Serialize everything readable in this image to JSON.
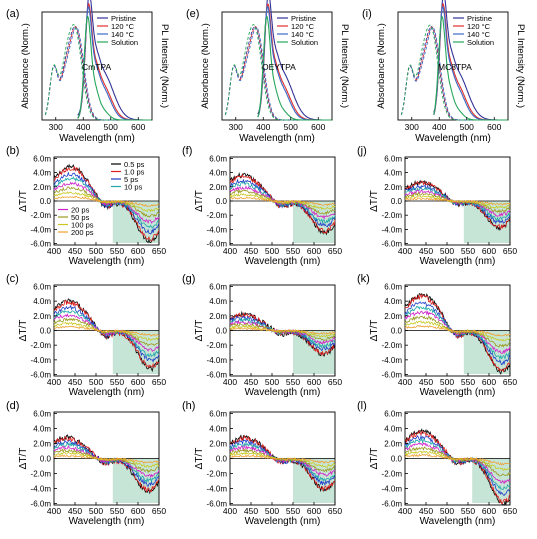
{
  "chart_data": {
    "type": "line",
    "colors": {
      "abs": {
        "Pristine": "#333399",
        "120 °C": "#e03030",
        "140 °C": "#3a6ac8",
        "Solution": "#26a65b"
      },
      "ta": [
        "#000000",
        "#e02020",
        "#1e3cc8",
        "#20a8a8",
        "#d020c8",
        "#9a9a20",
        "#c8c820",
        "#f0a030"
      ],
      "shade": "#b4dcc8"
    },
    "absorbance_panels": [
      {
        "letter": "(a)",
        "sample": "CmTPA",
        "xlabel": "Wavelength (nm)",
        "ylabel_left": "Absorbance (Norm.)",
        "ylabel_right": "PL Intensity (Norm.)",
        "xlim": [
          250,
          650
        ],
        "xticks": [
          300,
          400,
          500,
          600
        ],
        "legend": [
          "Pristine",
          "120 °C",
          "140 °C",
          "Solution"
        ],
        "absorption_peak_nm": 372,
        "pl_peak_nm": 418
      },
      {
        "letter": "(e)",
        "sample": "OEYTPA",
        "xlabel": "Wavelength (nm)",
        "ylabel_left": "Absorbance (Norm.)",
        "ylabel_right": "PL Intensity (Norm.)",
        "xlim": [
          250,
          650
        ],
        "xticks": [
          300,
          400,
          500,
          600
        ],
        "legend": [
          "Pristine",
          "120 °C",
          "140 °C",
          "Solution"
        ],
        "absorption_peak_nm": 372,
        "pl_peak_nm": 415
      },
      {
        "letter": "(i)",
        "sample": "MC8TPA",
        "xlabel": "Wavelength (nm)",
        "ylabel_left": "Absorbance (Norm.)",
        "ylabel_right": "PL Intensity (Norm.)",
        "xlim": [
          250,
          650
        ],
        "xticks": [
          300,
          400,
          500,
          600
        ],
        "legend": [
          "Pristine",
          "120 °C",
          "140 °C",
          "Solution"
        ],
        "absorption_peak_nm": 373,
        "pl_peak_nm": 412
      }
    ],
    "ta_common": {
      "xlabel": "Wavelength (nm)",
      "ylabel": "ΔT/T",
      "xlim": [
        400,
        650
      ],
      "ylim": [
        -6.2,
        6.2
      ],
      "xticks": [
        400,
        450,
        500,
        550,
        600,
        650
      ],
      "yticks": [
        6,
        4,
        2,
        0,
        -2,
        -4,
        -6
      ],
      "yticklabels": [
        "6.0m",
        "4.0m",
        "2.0m",
        "0.0",
        "-2.0m",
        "-4.0m",
        "-6.0m"
      ],
      "delays": [
        "0.5 ps",
        "1.0 ps",
        "5 ps",
        "10 ps",
        "20 ps",
        "50 ps",
        "100 ps",
        "200 ps"
      ],
      "legend_col1": [
        "0.5 ps",
        "1.0 ps",
        "5 ps",
        "10 ps"
      ],
      "legend_col2": [
        "20 ps",
        "50 ps",
        "100 ps",
        "200 ps"
      ]
    },
    "ta_panels": [
      {
        "letter": "(b)",
        "peak_mdt": 4.8,
        "peak_nm": 440,
        "min_mdt": -5.6,
        "min_nm": 628,
        "shade_start_nm": 540
      },
      {
        "letter": "(f)",
        "peak_mdt": 3.6,
        "peak_nm": 430,
        "min_mdt": -4.4,
        "min_nm": 625,
        "shade_start_nm": 550
      },
      {
        "letter": "(j)",
        "peak_mdt": 2.6,
        "peak_nm": 440,
        "min_mdt": -3.8,
        "min_nm": 625,
        "shade_start_nm": 540
      },
      {
        "letter": "(c)",
        "peak_mdt": 4.0,
        "peak_nm": 435,
        "min_mdt": -5.2,
        "min_nm": 630,
        "shade_start_nm": 540
      },
      {
        "letter": "(g)",
        "peak_mdt": 2.2,
        "peak_nm": 430,
        "min_mdt": -3.2,
        "min_nm": 622,
        "shade_start_nm": 550
      },
      {
        "letter": "(k)",
        "peak_mdt": 4.8,
        "peak_nm": 440,
        "min_mdt": -5.6,
        "min_nm": 630,
        "shade_start_nm": 540
      },
      {
        "letter": "(d)",
        "peak_mdt": 2.8,
        "peak_nm": 430,
        "min_mdt": -4.4,
        "min_nm": 625,
        "shade_start_nm": 540
      },
      {
        "letter": "(h)",
        "peak_mdt": 2.8,
        "peak_nm": 435,
        "min_mdt": -4.2,
        "min_nm": 625,
        "shade_start_nm": 550
      },
      {
        "letter": "(l)",
        "peak_mdt": 3.6,
        "peak_nm": 440,
        "min_mdt": -6.0,
        "min_nm": 635,
        "shade_start_nm": 560
      }
    ]
  }
}
